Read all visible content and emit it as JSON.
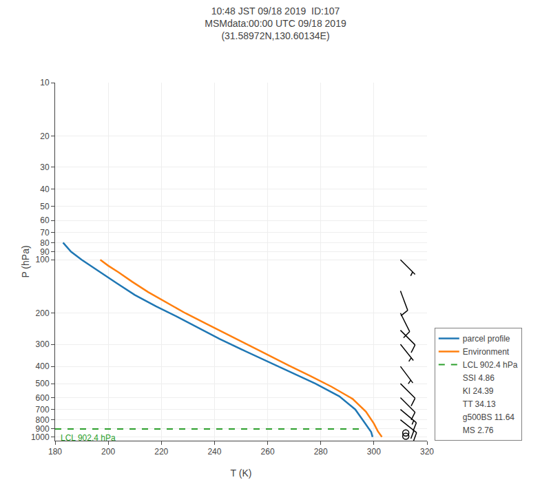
{
  "chart_data": {
    "type": "line",
    "title": "10:48 JST 09/18 2019  ID:107\nMSMdata:00:00 UTC 09/18 2019\n(31.58972N,130.60134E)",
    "x_label": "T (K)",
    "y_label": "P (hPa)",
    "log": "y",
    "xlim": [
      180,
      320
    ],
    "ylim": [
      1050,
      10
    ],
    "xticks": [
      180,
      200,
      220,
      240,
      260,
      280,
      300,
      320
    ],
    "yticks": [
      10,
      20,
      30,
      40,
      50,
      60,
      70,
      80,
      90,
      100,
      200,
      300,
      400,
      500,
      600,
      700,
      800,
      900,
      1000
    ],
    "grid": true,
    "legend": "lower right",
    "series": [
      {
        "name": "parcel profile",
        "color": "#1f77b4",
        "line_style": "solid",
        "x": [
          183,
          186,
          190,
          196,
          203,
          210,
          218,
          226,
          234,
          242,
          251,
          260,
          269,
          278,
          287,
          293,
          296,
          298,
          299,
          299.5
        ],
        "values": [
          80,
          90,
          100,
          115,
          135,
          158,
          183,
          210,
          243,
          280,
          325,
          375,
          433,
          500,
          590,
          700,
          810,
          890,
          940,
          1000
        ]
      },
      {
        "name": "Environment",
        "color": "#ff7f0e",
        "line_style": "solid",
        "x": [
          197,
          200,
          204,
          209,
          215,
          222,
          229,
          237,
          244,
          252,
          260,
          268,
          276,
          284,
          292,
          297,
          300,
          301.5,
          303
        ],
        "values": [
          100,
          108,
          118,
          133,
          152,
          175,
          200,
          230,
          260,
          300,
          345,
          395,
          452,
          520,
          610,
          720,
          840,
          930,
          1000
        ]
      },
      {
        "name": "LCL 902.4 hPa",
        "color": "#2ca02c",
        "line_style": "dashed",
        "x": [
          180,
          295
        ],
        "values": [
          902.4,
          902.4
        ]
      }
    ],
    "legend_entries": [
      "SSI 4.86",
      "KI 24.39",
      "TT 34.13",
      "g500BS 11.64",
      "MS 2.76"
    ],
    "annotations": [
      {
        "text": "LCL 902.4 hPa",
        "x": 180,
        "y": 902.4,
        "color": "#2ca02c"
      }
    ],
    "barbs": {
      "x": 310,
      "color": "#000000",
      "p": [
        100,
        150,
        200,
        250,
        300,
        400,
        500,
        600,
        700,
        800
      ],
      "u": [
        -5,
        -3,
        -5,
        -8,
        -4,
        -3,
        -6,
        -8,
        -12,
        -15
      ],
      "v": [
        5,
        8,
        10,
        8,
        5,
        4,
        6,
        8,
        10,
        12
      ]
    },
    "circles": {
      "x": 312,
      "p": [
        950,
        990
      ],
      "marker": "circle-open",
      "color": "#000000"
    }
  }
}
